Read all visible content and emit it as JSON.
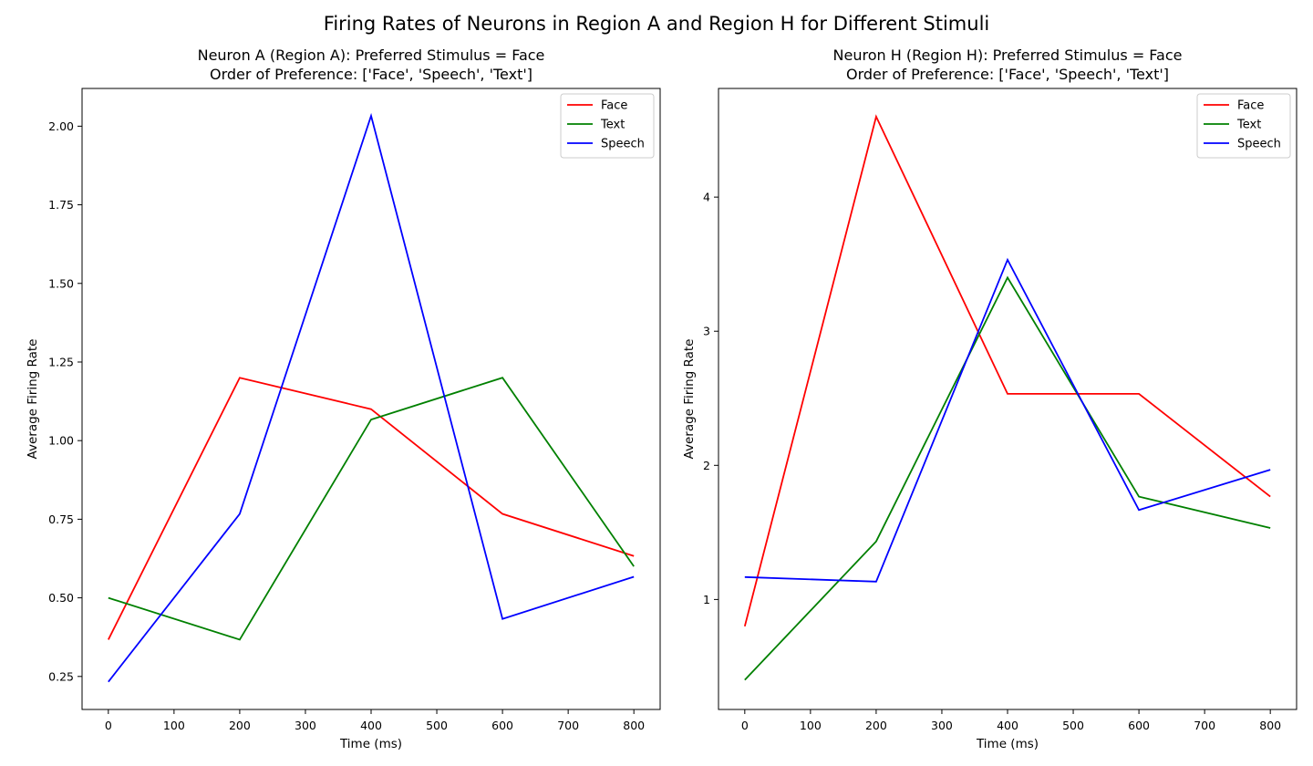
{
  "figure": {
    "suptitle": "Firing Rates of Neurons in Region A and Region H for Different Stimuli"
  },
  "chart_data": [
    {
      "type": "line",
      "title": "Neuron A (Region A): Preferred Stimulus = Face",
      "subtitle": "Order of Preference: ['Face', 'Speech', 'Text']",
      "xlabel": "Time (ms)",
      "ylabel": "Average Firing Rate",
      "x": [
        0,
        200,
        400,
        600,
        800
      ],
      "xlim": [
        -40,
        840
      ],
      "ylim": [
        0.145,
        2.12
      ],
      "xticks": [
        0,
        100,
        200,
        300,
        400,
        500,
        600,
        700,
        800
      ],
      "yticks": [
        0.25,
        0.5,
        0.75,
        1.0,
        1.25,
        1.5,
        1.75,
        2.0
      ],
      "ytick_labels": [
        "0.25",
        "0.50",
        "0.75",
        "1.00",
        "1.25",
        "1.50",
        "1.75",
        "2.00"
      ],
      "grid": false,
      "legend_position": "top-right",
      "series": [
        {
          "name": "Face",
          "color": "#ff0000",
          "values": [
            0.367,
            1.2,
            1.1,
            0.767,
            0.633
          ]
        },
        {
          "name": "Text",
          "color": "#008000",
          "values": [
            0.5,
            0.367,
            1.067,
            1.2,
            0.6
          ]
        },
        {
          "name": "Speech",
          "color": "#0000ff",
          "values": [
            0.233,
            0.767,
            2.033,
            0.433,
            0.567
          ]
        }
      ]
    },
    {
      "type": "line",
      "title": "Neuron H (Region H): Preferred Stimulus = Face",
      "subtitle": "Order of Preference: ['Face', 'Speech', 'Text']",
      "xlabel": "Time (ms)",
      "ylabel": "Average Firing Rate",
      "x": [
        0,
        200,
        400,
        600,
        800
      ],
      "xlim": [
        -40,
        840
      ],
      "ylim": [
        0.18,
        4.81
      ],
      "xticks": [
        0,
        100,
        200,
        300,
        400,
        500,
        600,
        700,
        800
      ],
      "yticks": [
        1,
        2,
        3,
        4
      ],
      "ytick_labels": [
        "1",
        "2",
        "3",
        "4"
      ],
      "grid": false,
      "legend_position": "top-right",
      "series": [
        {
          "name": "Face",
          "color": "#ff0000",
          "values": [
            0.8,
            4.6,
            2.533,
            2.533,
            1.767
          ]
        },
        {
          "name": "Text",
          "color": "#008000",
          "values": [
            0.4,
            1.433,
            3.4,
            1.767,
            1.533
          ]
        },
        {
          "name": "Speech",
          "color": "#0000ff",
          "values": [
            1.167,
            1.133,
            3.533,
            1.667,
            1.967
          ]
        }
      ]
    }
  ]
}
